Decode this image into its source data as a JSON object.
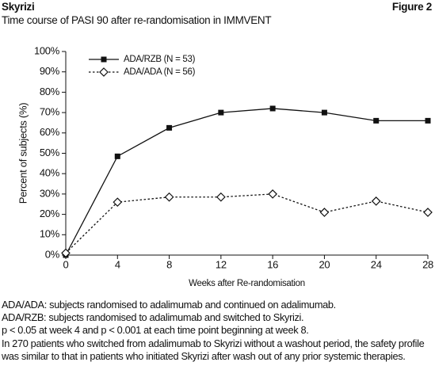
{
  "header": {
    "title": "Skyrizi",
    "figure": "Figure 2",
    "subtitle": "Time course of PASI 90 after re-randomisation in IMMVENT"
  },
  "chart_data": {
    "type": "line",
    "x_label": "Weeks after Re-randomisation",
    "y_label": "Percent of subjects (%)",
    "x": [
      0,
      4,
      8,
      12,
      16,
      20,
      24,
      28
    ],
    "series": [
      {
        "name": "ADA/RZB (N = 53)",
        "color": "#111111",
        "marker": "square",
        "dash": "solid",
        "values": [
          0,
          48.5,
          62.5,
          70,
          72,
          70,
          66,
          66
        ]
      },
      {
        "name": "ADA/ADA (N = 56)",
        "color": "#111111",
        "marker": "diamond",
        "dash": "dotted",
        "values": [
          1,
          26,
          28.5,
          28.5,
          30,
          21,
          26.5,
          21
        ]
      }
    ],
    "xlim": [
      0,
      28
    ],
    "xticks": [
      0,
      4,
      8,
      12,
      16,
      20,
      24,
      28
    ],
    "ylim": [
      0,
      100
    ],
    "yticks": [
      {
        "value": 0,
        "label": "0%"
      },
      {
        "value": 10,
        "label": "10%"
      },
      {
        "value": 20,
        "label": "20%"
      },
      {
        "value": 30,
        "label": "30%"
      },
      {
        "value": 40,
        "label": "40%"
      },
      {
        "value": 50,
        "label": "50%"
      },
      {
        "value": 60,
        "label": "60%"
      },
      {
        "value": 70,
        "label": "70%"
      },
      {
        "value": 80,
        "label": "80%"
      },
      {
        "value": 90,
        "label": "90%"
      },
      {
        "value": 100,
        "label": "100%"
      }
    ],
    "grid": false,
    "legend": "upper-left"
  },
  "notes": [
    "ADA/ADA: subjects randomised to adalimumab and continued on adalimumab.",
    "ADA/RZB: subjects randomised to adalimumab and switched to Skyrizi.",
    "p < 0.05 at week 4 and p < 0.001 at each time point beginning at week 8.",
    "In 270 patients who switched from adalimumab to Skyrizi without a washout period, the safety profile was similar to that in patients who initiated Skyrizi after wash out of any prior systemic therapies."
  ]
}
